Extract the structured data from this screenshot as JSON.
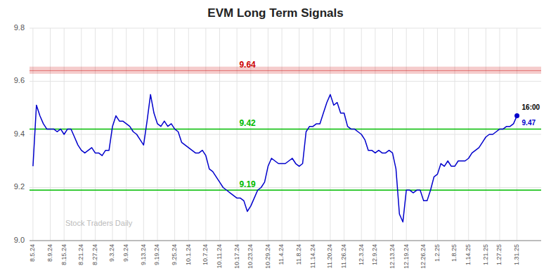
{
  "chart_data": {
    "type": "line",
    "title": "EVM Long Term Signals",
    "color": "#0000cc",
    "grid": true,
    "ylim": [
      9.0,
      9.8
    ],
    "yticks": [
      {
        "value": 9.0,
        "label": "9.0"
      },
      9.2,
      9.4,
      9.6,
      9.8
    ],
    "reference_lines": [
      {
        "value": 9.64,
        "color": "#cc0000",
        "band": [
          9.628,
          9.655
        ]
      },
      {
        "value": 9.42,
        "color": "#00bb00"
      },
      {
        "value": 9.19,
        "color": "#00bb00"
      }
    ],
    "annotations": [
      "16:00",
      "Stock Traders Daily"
    ],
    "categories": [
      "8.5.24",
      null,
      null,
      null,
      null,
      "8.9.24",
      null,
      null,
      null,
      "8.15.24",
      null,
      null,
      null,
      null,
      "8.21.24",
      null,
      null,
      null,
      "8.27.24",
      null,
      null,
      null,
      null,
      "9.3.24",
      null,
      null,
      null,
      "9.9.24",
      null,
      null,
      null,
      null,
      "9.13.24",
      null,
      null,
      null,
      "9.19.24",
      null,
      null,
      null,
      null,
      "9.25.24",
      null,
      null,
      null,
      "10.1.24",
      null,
      null,
      null,
      null,
      "10.7.24",
      null,
      null,
      null,
      "10.11.24",
      null,
      null,
      null,
      null,
      "10.17.24",
      null,
      null,
      null,
      "10.23.24",
      null,
      null,
      null,
      null,
      "10.29.24",
      null,
      null,
      null,
      "11.4.24",
      null,
      null,
      null,
      null,
      "11.8.24",
      null,
      null,
      null,
      "11.14.24",
      null,
      null,
      null,
      null,
      "11.20.24",
      null,
      null,
      null,
      "11.26.24",
      null,
      null,
      null,
      null,
      "12.3.24",
      null,
      null,
      null,
      "12.9.24",
      null,
      null,
      null,
      null,
      "12.13.24",
      null,
      null,
      null,
      "12.19.24",
      null,
      null,
      null,
      null,
      "12.26.24",
      null,
      null,
      null,
      "1.2.25",
      null,
      null,
      null,
      null,
      "1.8.25",
      null,
      null,
      null,
      "1.14.25",
      null,
      null,
      null,
      null,
      "1.21.25",
      null,
      null,
      null,
      "1.27.25",
      null,
      null,
      null,
      null,
      "1.31.25"
    ],
    "values": [
      9.28,
      9.51,
      9.47,
      9.44,
      9.42,
      9.42,
      9.42,
      9.41,
      9.42,
      9.4,
      9.42,
      9.42,
      9.39,
      9.36,
      9.34,
      9.33,
      9.34,
      9.35,
      9.33,
      9.33,
      9.32,
      9.34,
      9.34,
      9.43,
      9.47,
      9.45,
      9.45,
      9.44,
      9.43,
      9.41,
      9.4,
      9.38,
      9.36,
      9.45,
      9.55,
      9.48,
      9.44,
      9.43,
      9.45,
      9.43,
      9.44,
      9.42,
      9.41,
      9.37,
      9.36,
      9.35,
      9.34,
      9.33,
      9.33,
      9.34,
      9.32,
      9.27,
      9.26,
      9.24,
      9.22,
      9.2,
      9.19,
      9.18,
      9.17,
      9.16,
      9.16,
      9.15,
      9.11,
      9.13,
      9.16,
      9.19,
      9.2,
      9.22,
      9.28,
      9.31,
      9.3,
      9.29,
      9.29,
      9.29,
      9.3,
      9.31,
      9.29,
      9.28,
      9.29,
      9.41,
      9.43,
      9.43,
      9.44,
      9.44,
      9.48,
      9.52,
      9.55,
      9.51,
      9.52,
      9.48,
      9.48,
      9.43,
      9.42,
      9.42,
      9.41,
      9.4,
      9.38,
      9.34,
      9.34,
      9.33,
      9.34,
      9.33,
      9.33,
      9.34,
      9.33,
      9.27,
      9.1,
      9.07,
      9.19,
      9.19,
      9.18,
      9.19,
      9.19,
      9.15,
      9.15,
      9.19,
      9.24,
      9.25,
      9.29,
      9.28,
      9.3,
      9.28,
      9.28,
      9.3,
      9.3,
      9.3,
      9.31,
      9.33,
      9.34,
      9.35,
      9.37,
      9.39,
      9.4,
      9.4,
      9.41,
      9.42,
      9.42,
      9.43,
      9.43,
      9.44,
      9.47
    ]
  }
}
